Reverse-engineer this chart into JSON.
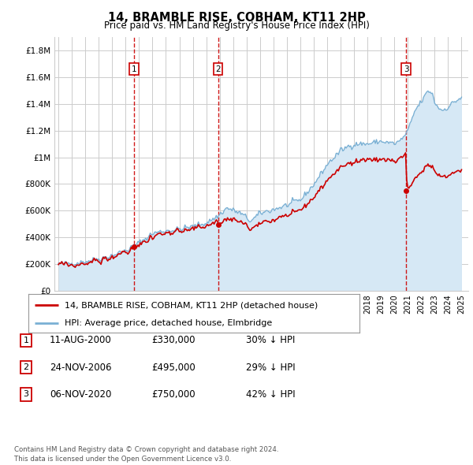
{
  "title": "14, BRAMBLE RISE, COBHAM, KT11 2HP",
  "subtitle": "Price paid vs. HM Land Registry's House Price Index (HPI)",
  "ylabel_ticks": [
    "£0",
    "£200K",
    "£400K",
    "£600K",
    "£800K",
    "£1M",
    "£1.2M",
    "£1.4M",
    "£1.6M",
    "£1.8M"
  ],
  "ytick_values": [
    0,
    200000,
    400000,
    600000,
    800000,
    1000000,
    1200000,
    1400000,
    1600000,
    1800000
  ],
  "ylim": [
    0,
    1900000
  ],
  "sale_color": "#cc0000",
  "hpi_color": "#7ab0d4",
  "hpi_fill_color": "#d6e8f5",
  "grid_color": "#cccccc",
  "sale_prices": [
    330000,
    495000,
    750000
  ],
  "sale_labels": [
    "1",
    "2",
    "3"
  ],
  "sale_hpi_pct": [
    "30% ↓ HPI",
    "29% ↓ HPI",
    "42% ↓ HPI"
  ],
  "sale_dates_str": [
    "11-AUG-2000",
    "24-NOV-2006",
    "06-NOV-2020"
  ],
  "sale_prices_str": [
    "£330,000",
    "£495,000",
    "£750,000"
  ],
  "legend_line1": "14, BRAMBLE RISE, COBHAM, KT11 2HP (detached house)",
  "legend_line2": "HPI: Average price, detached house, Elmbridge",
  "footnote": "Contains HM Land Registry data © Crown copyright and database right 2024.\nThis data is licensed under the Open Government Licence v3.0.",
  "background_color": "#ffffff"
}
